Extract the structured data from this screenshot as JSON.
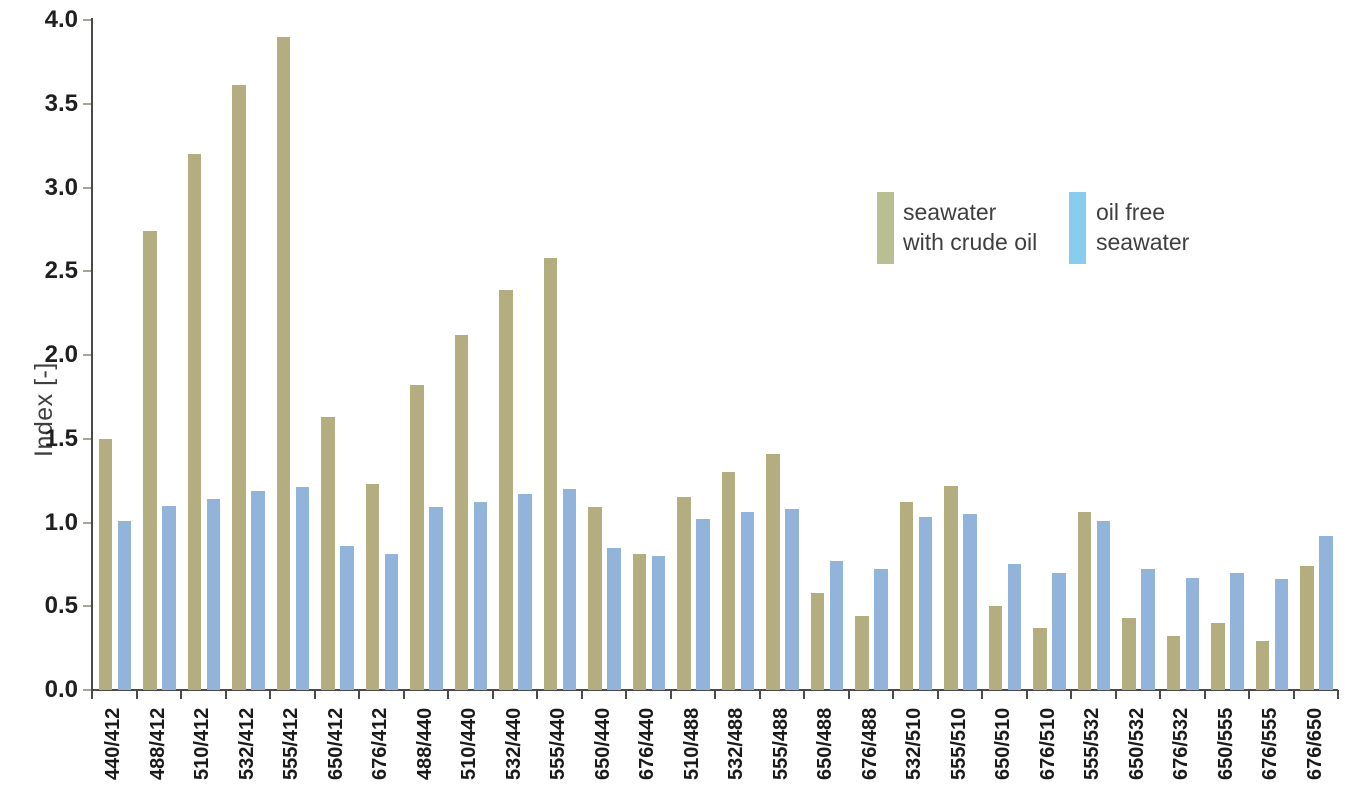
{
  "chart_data": {
    "type": "bar",
    "title": "",
    "xlabel": "",
    "ylabel": "Index [-]",
    "ylim": [
      0.0,
      4.0
    ],
    "ytick_step": 0.5,
    "ytick_labels": [
      "0.0",
      "0.5",
      "1.0",
      "1.5",
      "2.0",
      "2.5",
      "3.0",
      "3.5",
      "4.0"
    ],
    "grid": false,
    "legend_position": "top-right",
    "categories": [
      "440/412",
      "488/412",
      "510/412",
      "532/412",
      "555/412",
      "650/412",
      "676/412",
      "488/440",
      "510/440",
      "532/440",
      "555/440",
      "650/440",
      "676/440",
      "510/488",
      "532/488",
      "555/488",
      "650/488",
      "676/488",
      "532/510",
      "555/510",
      "650/510",
      "676/510",
      "555/532",
      "650/532",
      "676/532",
      "650/555",
      "676/555",
      "676/650"
    ],
    "series": [
      {
        "name": "seawater with crude oil",
        "color": "#b4ad80",
        "legend_color": "#b9bf93",
        "values": [
          1.5,
          2.74,
          3.2,
          3.61,
          3.9,
          1.63,
          1.23,
          1.82,
          2.12,
          2.39,
          2.58,
          1.09,
          0.81,
          1.15,
          1.3,
          1.41,
          0.58,
          0.44,
          1.12,
          1.22,
          0.5,
          0.37,
          1.06,
          0.43,
          0.32,
          0.4,
          0.29,
          0.74
        ]
      },
      {
        "name": "oil free seawater",
        "color": "#92b4db",
        "legend_color": "#88cdee",
        "values": [
          1.01,
          1.1,
          1.14,
          1.19,
          1.21,
          0.86,
          0.81,
          1.09,
          1.12,
          1.17,
          1.2,
          0.85,
          0.8,
          1.02,
          1.06,
          1.08,
          0.77,
          0.72,
          1.03,
          1.05,
          0.75,
          0.7,
          1.01,
          0.72,
          0.67,
          0.7,
          0.66,
          0.92
        ]
      }
    ]
  },
  "legend": [
    {
      "lines": [
        "seawater",
        "with crude oil"
      ],
      "color": "#b9bf93"
    },
    {
      "lines": [
        "oil free",
        "seawater"
      ],
      "color": "#88cdee"
    }
  ],
  "colors": {
    "crude_oil_bar": "#b4ad80",
    "oil_free_bar": "#92b4db",
    "crude_oil_legend": "#b9bf93",
    "oil_free_legend": "#88cdee",
    "axis_line": "#4a4a4a",
    "tick_label": "#1f1f1f",
    "secondary_text": "#3f3f3f",
    "background": "#ffffff"
  }
}
